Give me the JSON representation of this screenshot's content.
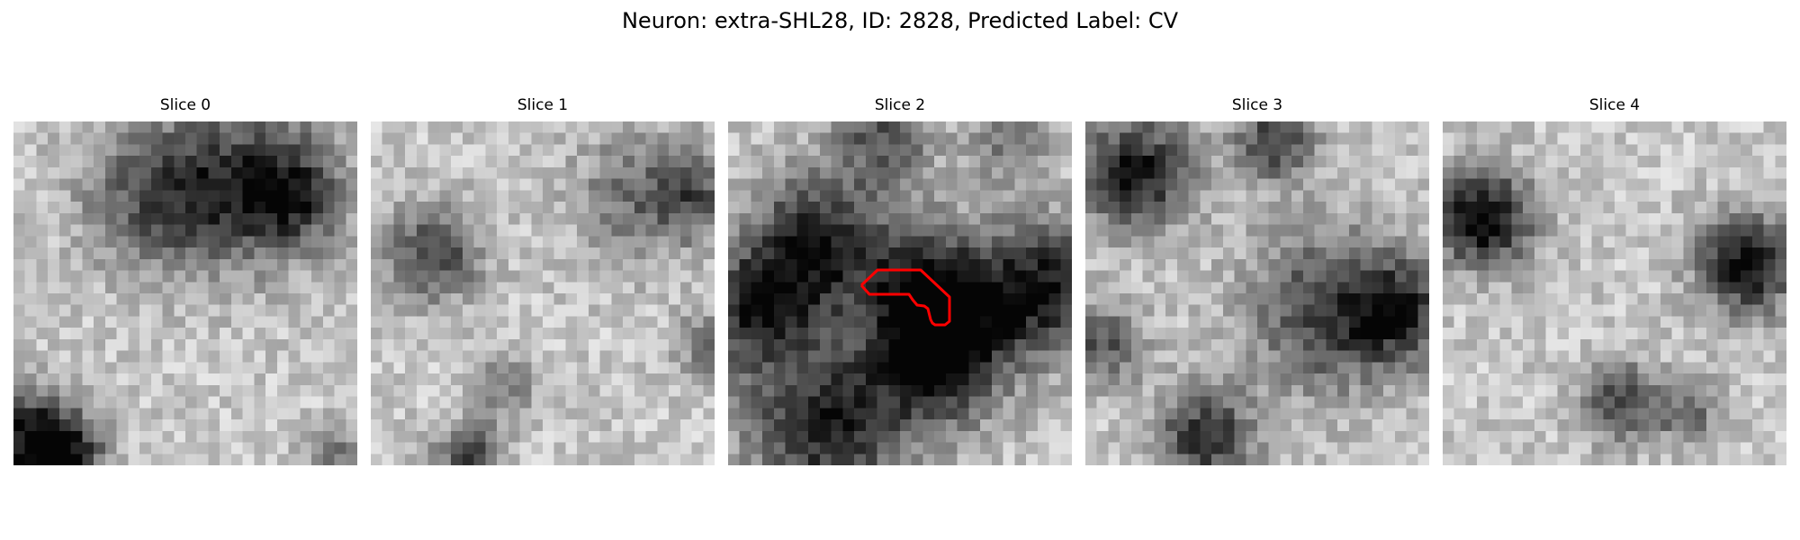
{
  "title": "Neuron: extra-SHL28, ID: 2828, Predicted Label: CV",
  "slices": [
    {
      "label": "Slice 0",
      "outline": false
    },
    {
      "label": "Slice 1",
      "outline": false
    },
    {
      "label": "Slice 2",
      "outline": true
    },
    {
      "label": "Slice 3",
      "outline": false
    },
    {
      "label": "Slice 4",
      "outline": false
    }
  ],
  "colors": {
    "outline": "#ff0000"
  }
}
